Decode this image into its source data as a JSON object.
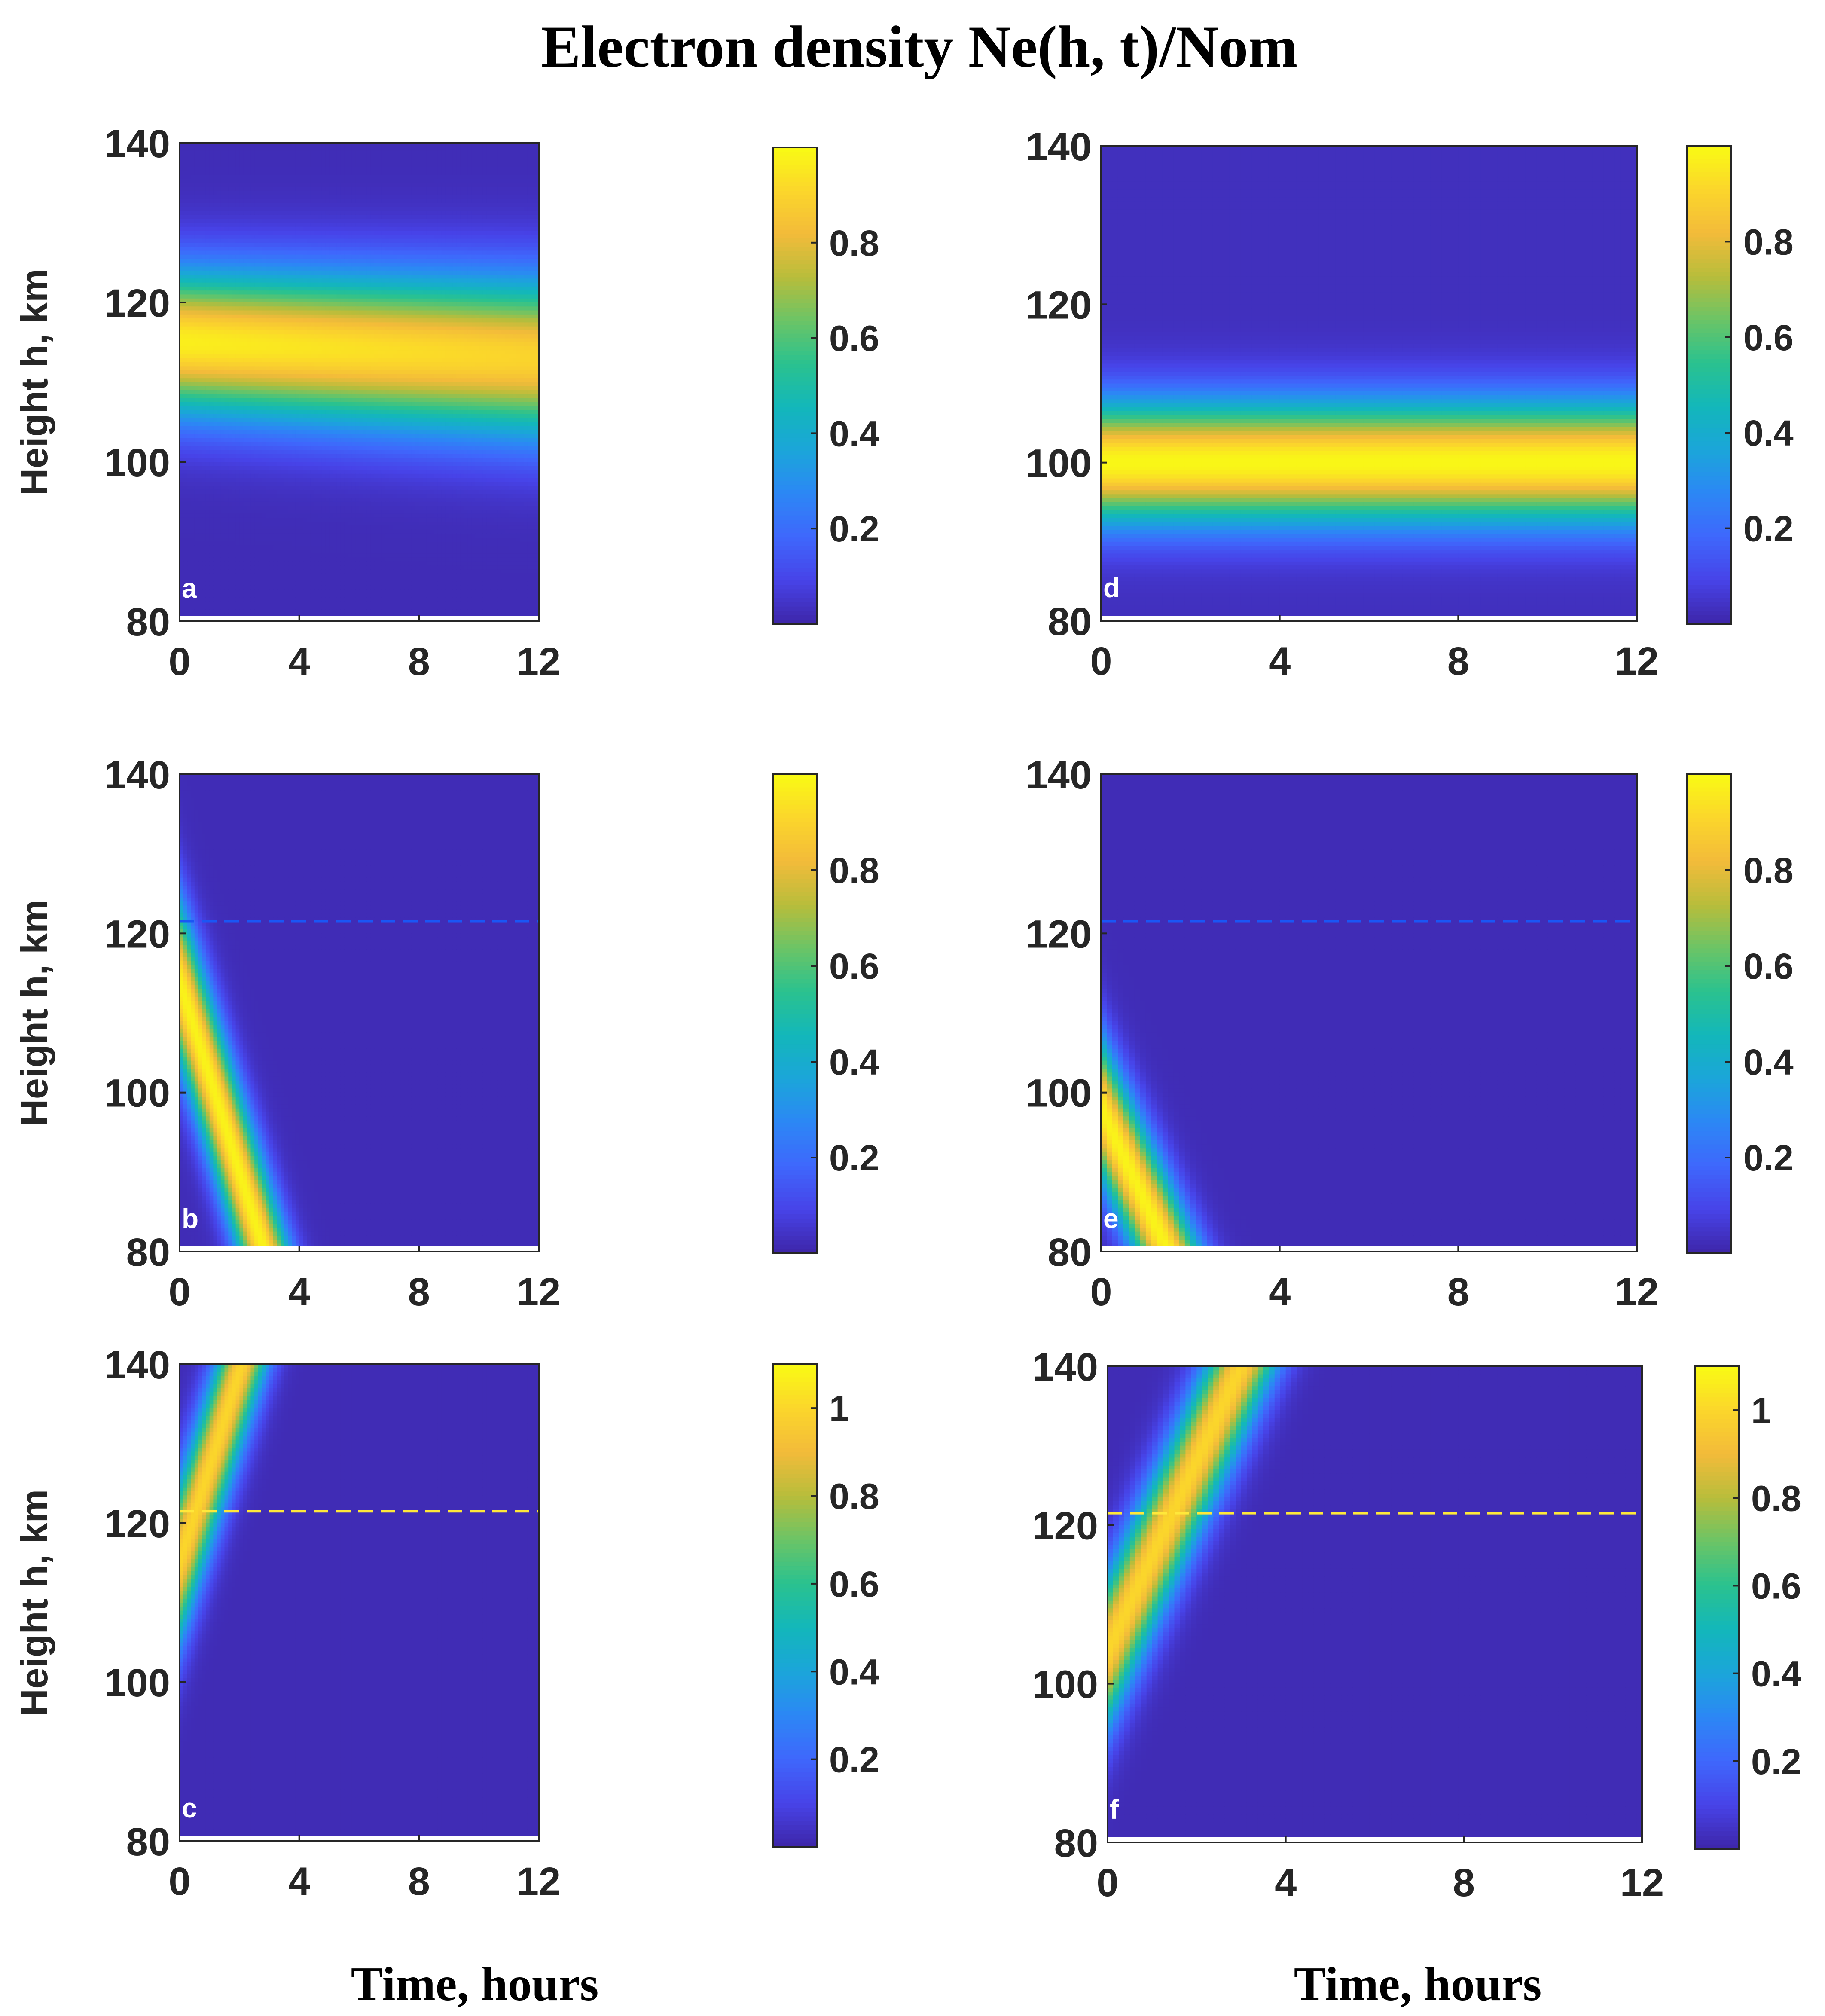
{
  "title": "Electron density Ne(h, t)/Nom",
  "chart_data": {
    "type": "heatmap",
    "title": "Electron density Ne(h, t)/Nom",
    "colormap": "parula",
    "colors": {
      "parula": [
        "#3e26a8",
        "#4743e8",
        "#3f67fc",
        "#2c87f5",
        "#1ba5da",
        "#13b7ba",
        "#2ac28f",
        "#6bc466",
        "#b8bd3b",
        "#f3bb3a",
        "#fbd62b",
        "#f9fb14"
      ],
      "dashed_blue": "#1a56f5",
      "dashed_yellow": "#ffe83a",
      "label_color": "#ffffff"
    },
    "panels": [
      {
        "label": "a",
        "kind": "static",
        "peak_height_start": 115,
        "peak_height_end": 113,
        "halfwidth_start": 13,
        "halfwidth_end": 14.5,
        "max_start": 0.97,
        "max_end": 0.9,
        "floor": 0.02,
        "xlabel": "",
        "ylabel": "Height h, km",
        "xlim": [
          0,
          12
        ],
        "ylim": [
          80,
          140
        ],
        "xticks": [
          "0",
          "4",
          "8",
          "12"
        ],
        "yticks": [
          "80",
          "100",
          "120",
          "140"
        ],
        "clim": [
          0,
          1
        ],
        "cbticks": [
          "0.2",
          "0.4",
          "0.6",
          "0.8"
        ],
        "dashed_line": null
      },
      {
        "label": "b",
        "kind": "descending",
        "center_height_at_t0": 114,
        "speed_km_per_hour": 12,
        "halfwidth": 15,
        "max": 0.98,
        "floor": 0.02,
        "xlabel": "",
        "ylabel": "Height h, km",
        "xlim": [
          0,
          12
        ],
        "ylim": [
          80,
          140
        ],
        "xticks": [
          "0",
          "4",
          "8",
          "12"
        ],
        "yticks": [
          "80",
          "100",
          "120",
          "140"
        ],
        "clim": [
          0,
          1
        ],
        "cbticks": [
          "0.2",
          "0.4",
          "0.6",
          "0.8"
        ],
        "dashed_line": {
          "height": 121.5,
          "color": "blue"
        }
      },
      {
        "label": "c",
        "kind": "ascending",
        "center_height_at_t0": 115,
        "speed_km_per_hour": 12,
        "halfwidth": 15,
        "max": 1.0,
        "floor": 0.02,
        "xlabel": "Time, hours",
        "ylabel": "Height h, km",
        "xlim": [
          0,
          12
        ],
        "ylim": [
          80,
          140
        ],
        "xticks": [
          "0",
          "4",
          "8",
          "12"
        ],
        "yticks": [
          "80",
          "100",
          "120",
          "140"
        ],
        "clim": [
          0,
          1.1
        ],
        "cbticks": [
          "0.2",
          "0.4",
          "0.6",
          "0.8",
          "1"
        ],
        "dashed_line": {
          "height": 121.5,
          "color": "yellow"
        }
      },
      {
        "label": "d",
        "kind": "static",
        "peak_height_start": 100,
        "peak_height_end": 100,
        "halfwidth_start": 11,
        "halfwidth_end": 11,
        "max_start": 0.99,
        "max_end": 0.99,
        "floor": 0.03,
        "xlabel": "",
        "ylabel": "",
        "xlim": [
          0,
          12
        ],
        "ylim": [
          80,
          140
        ],
        "xticks": [
          "0",
          "4",
          "8",
          "12"
        ],
        "yticks": [
          "80",
          "100",
          "120",
          "140"
        ],
        "clim": [
          0,
          1
        ],
        "cbticks": [
          "0.2",
          "0.4",
          "0.6",
          "0.8"
        ],
        "dashed_line": null
      },
      {
        "label": "e",
        "kind": "descending",
        "center_height_at_t0": 98,
        "speed_km_per_hour": 12,
        "halfwidth": 13,
        "max": 0.98,
        "floor": 0.02,
        "xlabel": "",
        "ylabel": "",
        "xlim": [
          0,
          12
        ],
        "ylim": [
          80,
          140
        ],
        "xticks": [
          "0",
          "4",
          "8",
          "12"
        ],
        "yticks": [
          "80",
          "100",
          "120",
          "140"
        ],
        "clim": [
          0,
          1
        ],
        "cbticks": [
          "0.2",
          "0.4",
          "0.6",
          "0.8"
        ],
        "dashed_line": {
          "height": 121.5,
          "color": "blue"
        }
      },
      {
        "label": "f",
        "kind": "ascending",
        "center_height_at_t0": 104,
        "speed_km_per_hour": 12,
        "halfwidth": 14,
        "max": 1.0,
        "floor": 0.02,
        "xlabel": "Time, hours",
        "ylabel": "",
        "xlim": [
          0,
          12
        ],
        "ylim": [
          80,
          140
        ],
        "xticks": [
          "0",
          "4",
          "8",
          "12"
        ],
        "yticks": [
          "80",
          "100",
          "120",
          "140"
        ],
        "clim": [
          0,
          1.1
        ],
        "cbticks": [
          "0.2",
          "0.4",
          "0.6",
          "0.8",
          "1"
        ],
        "dashed_line": {
          "height": 121.5,
          "color": "yellow"
        }
      }
    ]
  }
}
